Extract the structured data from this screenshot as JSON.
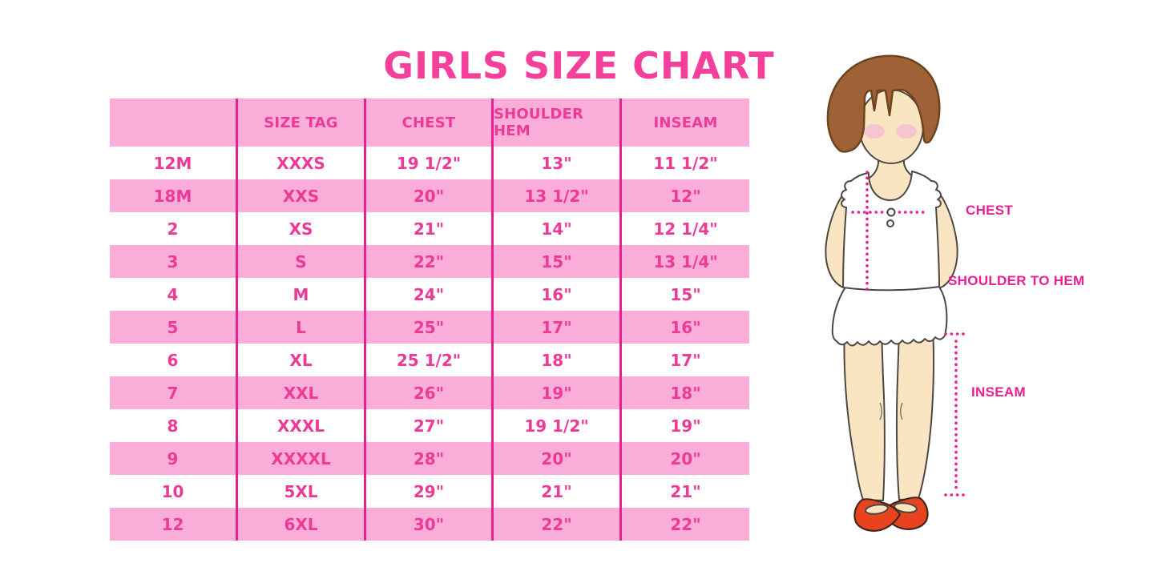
{
  "title": "GIRLS SIZE CHART",
  "colors": {
    "title_pink": "#F4409B",
    "table_text": "#EE3A97",
    "cell_pink": "#FBADD9",
    "divider": "#E81F8F",
    "label": "#ED1E94",
    "dot": "#ED1E94",
    "hair": "#9E6236",
    "hair_outline": "#6E441E",
    "skin": "#FAE5C2",
    "skin_outline": "#4D4742",
    "blush": "#F6C6CF",
    "shoe": "#E8431F",
    "shoe_outline": "#402A1E",
    "shirt": "#FFFFFF"
  },
  "chart_data": {
    "type": "table",
    "title": "GIRLS SIZE CHART",
    "columns": [
      "",
      "SIZE TAG",
      "CHEST",
      "SHOULDER HEM",
      "INSEAM"
    ],
    "rows": [
      [
        "12M",
        "XXXS",
        "19 1/2\"",
        "13\"",
        "11 1/2\""
      ],
      [
        "18M",
        "XXS",
        "20\"",
        "13 1/2\"",
        "12\""
      ],
      [
        "2",
        "XS",
        "21\"",
        "14\"",
        "12 1/4\""
      ],
      [
        "3",
        "S",
        "22\"",
        "15\"",
        "13 1/4\""
      ],
      [
        "4",
        "M",
        "24\"",
        "16\"",
        "15\""
      ],
      [
        "5",
        "L",
        "25\"",
        "17\"",
        "16\""
      ],
      [
        "6",
        "XL",
        "25 1/2\"",
        "18\"",
        "17\""
      ],
      [
        "7",
        "XXL",
        "26\"",
        "19\"",
        "18\""
      ],
      [
        "8",
        "XXXL",
        "27\"",
        "19 1/2\"",
        "19\""
      ],
      [
        "9",
        "XXXXL",
        "28\"",
        "20\"",
        "20\""
      ],
      [
        "10",
        "5XL",
        "29\"",
        "21\"",
        "21\""
      ],
      [
        "12",
        "6XL",
        "30\"",
        "22\"",
        "22\""
      ]
    ]
  },
  "figure": {
    "labels": {
      "chest": "CHEST",
      "shoulder_to_hem": "SHOULDER TO HEM",
      "inseam": "INSEAM"
    }
  }
}
